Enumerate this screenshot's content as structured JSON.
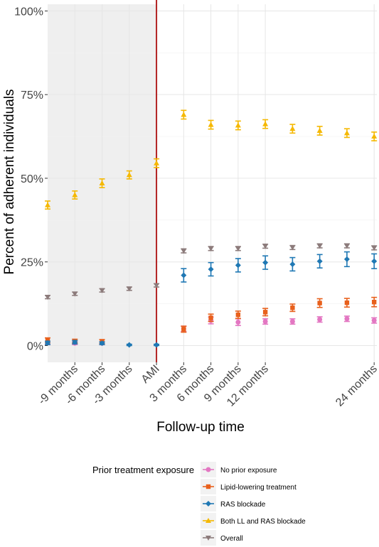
{
  "chart_data": {
    "type": "scatter",
    "title": "",
    "xlabel": "Follow-up time",
    "ylabel": "Percent of adherent individuals",
    "x_ticks": [
      {
        "x": -3,
        "label": "-9 months"
      },
      {
        "x": -2,
        "label": "-6 months"
      },
      {
        "x": -1,
        "label": "-3 months"
      },
      {
        "x": 0,
        "label": "AMI"
      },
      {
        "x": 1,
        "label": "3 months"
      },
      {
        "x": 2,
        "label": "6 months"
      },
      {
        "x": 3,
        "label": "9 months"
      },
      {
        "x": 4,
        "label": "12 months"
      },
      {
        "x": 8,
        "label": "24 months"
      }
    ],
    "y_ticks": [
      {
        "y": 0,
        "label": "0%"
      },
      {
        "y": 25,
        "label": "25%"
      },
      {
        "y": 50,
        "label": "50%"
      },
      {
        "y": 75,
        "label": "75%"
      },
      {
        "y": 100,
        "label": "100%"
      }
    ],
    "xlim": [
      -4,
      8.1
    ],
    "ylim": [
      -5,
      102
    ],
    "pre_event_shading": [
      -4,
      0
    ],
    "event_line": {
      "x": 0,
      "color": "#B22222"
    },
    "grid": true,
    "legend": {
      "title": "Prior treatment exposure",
      "position": "bottom"
    },
    "series": [
      {
        "name": "No prior exposure",
        "color": "#E377C2",
        "marker": "circle",
        "points": [
          {
            "x": -4,
            "y": 0.8,
            "lo": 0.3,
            "hi": 1.3
          },
          {
            "x": -3,
            "y": 0.7,
            "lo": 0.3,
            "hi": 1.1
          },
          {
            "x": -2,
            "y": 0.7,
            "lo": 0.3,
            "hi": 1.1
          },
          {
            "x": 1,
            "y": 5.0,
            "lo": 4.2,
            "hi": 5.8
          },
          {
            "x": 2,
            "y": 7.5,
            "lo": 6.5,
            "hi": 8.5
          },
          {
            "x": 3,
            "y": 7.0,
            "lo": 6.0,
            "hi": 8.0
          },
          {
            "x": 4,
            "y": 7.2,
            "lo": 6.4,
            "hi": 8.0
          },
          {
            "x": 5,
            "y": 7.2,
            "lo": 6.4,
            "hi": 8.0
          },
          {
            "x": 6,
            "y": 7.8,
            "lo": 7.0,
            "hi": 8.6
          },
          {
            "x": 7,
            "y": 8.0,
            "lo": 7.2,
            "hi": 8.8
          },
          {
            "x": 8,
            "y": 7.5,
            "lo": 6.7,
            "hi": 8.3
          }
        ]
      },
      {
        "name": "Lipid-lowering treatment",
        "color": "#E8601C",
        "marker": "square",
        "points": [
          {
            "x": -4,
            "y": 1.5,
            "lo": 0.8,
            "hi": 2.3
          },
          {
            "x": -3,
            "y": 1.3,
            "lo": 0.7,
            "hi": 1.9
          },
          {
            "x": -2,
            "y": 1.2,
            "lo": 0.6,
            "hi": 1.8
          },
          {
            "x": 1,
            "y": 4.9,
            "lo": 4.0,
            "hi": 5.8
          },
          {
            "x": 2,
            "y": 8.3,
            "lo": 7.2,
            "hi": 9.4
          },
          {
            "x": 3,
            "y": 9.2,
            "lo": 8.1,
            "hi": 10.3
          },
          {
            "x": 4,
            "y": 10.0,
            "lo": 8.9,
            "hi": 11.1
          },
          {
            "x": 5,
            "y": 11.3,
            "lo": 10.2,
            "hi": 12.4
          },
          {
            "x": 6,
            "y": 12.7,
            "lo": 11.4,
            "hi": 14.0
          },
          {
            "x": 7,
            "y": 12.8,
            "lo": 11.5,
            "hi": 14.1
          },
          {
            "x": 8,
            "y": 13.0,
            "lo": 11.6,
            "hi": 14.4
          }
        ]
      },
      {
        "name": "RAS blockade",
        "color": "#1F78B4",
        "marker": "diamond",
        "points": [
          {
            "x": -4,
            "y": 0.8,
            "lo": 0.3,
            "hi": 1.3
          },
          {
            "x": -3,
            "y": 1.0,
            "lo": 0.5,
            "hi": 1.5
          },
          {
            "x": -2,
            "y": 0.7,
            "lo": 0.3,
            "hi": 1.1
          },
          {
            "x": -1,
            "y": 0.2,
            "lo": 0.0,
            "hi": 0.4
          },
          {
            "x": 0,
            "y": 0.2,
            "lo": 0.0,
            "hi": 0.4
          },
          {
            "x": 1,
            "y": 21.0,
            "lo": 19.0,
            "hi": 23.0
          },
          {
            "x": 2,
            "y": 22.8,
            "lo": 20.8,
            "hi": 24.8
          },
          {
            "x": 3,
            "y": 24.0,
            "lo": 22.0,
            "hi": 26.0
          },
          {
            "x": 4,
            "y": 24.8,
            "lo": 22.8,
            "hi": 26.8
          },
          {
            "x": 5,
            "y": 24.3,
            "lo": 22.3,
            "hi": 26.3
          },
          {
            "x": 6,
            "y": 25.2,
            "lo": 23.2,
            "hi": 27.2
          },
          {
            "x": 7,
            "y": 25.8,
            "lo": 23.6,
            "hi": 28.0
          },
          {
            "x": 8,
            "y": 25.2,
            "lo": 23.0,
            "hi": 27.4
          }
        ]
      },
      {
        "name": "Both LL and RAS blockade",
        "color": "#F5B800",
        "marker": "triangle-up",
        "points": [
          {
            "x": -4,
            "y": 42.0,
            "lo": 40.8,
            "hi": 43.2
          },
          {
            "x": -3,
            "y": 45.0,
            "lo": 43.8,
            "hi": 46.2
          },
          {
            "x": -2,
            "y": 48.5,
            "lo": 47.2,
            "hi": 49.8
          },
          {
            "x": -1,
            "y": 51.0,
            "lo": 49.8,
            "hi": 52.2
          },
          {
            "x": 0,
            "y": 54.5,
            "lo": 53.2,
            "hi": 55.8
          },
          {
            "x": 1,
            "y": 69.0,
            "lo": 67.7,
            "hi": 70.3
          },
          {
            "x": 2,
            "y": 66.0,
            "lo": 64.7,
            "hi": 67.3
          },
          {
            "x": 3,
            "y": 65.8,
            "lo": 64.5,
            "hi": 67.1
          },
          {
            "x": 4,
            "y": 66.2,
            "lo": 64.9,
            "hi": 67.5
          },
          {
            "x": 5,
            "y": 64.8,
            "lo": 63.5,
            "hi": 66.1
          },
          {
            "x": 6,
            "y": 64.2,
            "lo": 62.9,
            "hi": 65.5
          },
          {
            "x": 7,
            "y": 63.5,
            "lo": 62.2,
            "hi": 64.8
          },
          {
            "x": 8,
            "y": 62.5,
            "lo": 61.2,
            "hi": 63.8
          }
        ]
      },
      {
        "name": "Overall",
        "color": "#8C7B7B",
        "marker": "triangle-down",
        "points": [
          {
            "x": -4,
            "y": 14.5,
            "lo": 14.0,
            "hi": 15.0
          },
          {
            "x": -3,
            "y": 15.5,
            "lo": 15.0,
            "hi": 16.0
          },
          {
            "x": -2,
            "y": 16.5,
            "lo": 16.0,
            "hi": 17.0
          },
          {
            "x": -1,
            "y": 17.0,
            "lo": 16.5,
            "hi": 17.5
          },
          {
            "x": 0,
            "y": 18.0,
            "lo": 17.5,
            "hi": 18.5
          },
          {
            "x": 1,
            "y": 28.3,
            "lo": 27.7,
            "hi": 28.9
          },
          {
            "x": 2,
            "y": 29.0,
            "lo": 28.4,
            "hi": 29.6
          },
          {
            "x": 3,
            "y": 29.0,
            "lo": 28.4,
            "hi": 29.6
          },
          {
            "x": 4,
            "y": 29.7,
            "lo": 29.1,
            "hi": 30.3
          },
          {
            "x": 5,
            "y": 29.3,
            "lo": 28.7,
            "hi": 29.9
          },
          {
            "x": 6,
            "y": 29.8,
            "lo": 29.2,
            "hi": 30.4
          },
          {
            "x": 7,
            "y": 29.8,
            "lo": 29.2,
            "hi": 30.4
          },
          {
            "x": 8,
            "y": 29.2,
            "lo": 28.6,
            "hi": 29.8
          }
        ]
      }
    ]
  }
}
